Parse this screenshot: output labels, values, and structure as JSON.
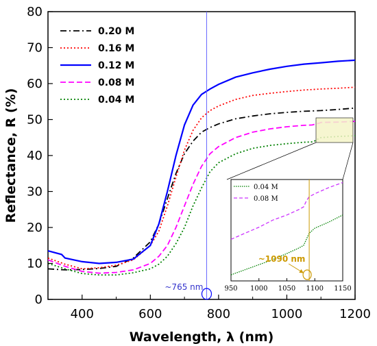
{
  "chart_data": {
    "type": "line",
    "xlabel": "Wavelength, λ (nm)",
    "ylabel": "Reflectance, R (%)",
    "xlim": [
      300,
      1200
    ],
    "ylim": [
      0,
      80
    ],
    "xticks": [
      "400",
      "600",
      "800",
      "1000",
      "1200"
    ],
    "yticks": [
      "0",
      "10",
      "20",
      "30",
      "40",
      "50",
      "60",
      "70",
      "80"
    ],
    "legend_position": "top-left",
    "grid": false,
    "series": [
      {
        "name": "0.20 M",
        "color": "#000000",
        "dash": "dashdot",
        "x": [
          300,
          350,
          400,
          450,
          500,
          550,
          600,
          625,
          650,
          675,
          700,
          725,
          750,
          775,
          800,
          850,
          900,
          950,
          1000,
          1050,
          1100,
          1150,
          1200
        ],
        "y": [
          8.5,
          8.2,
          8.3,
          8.6,
          9.2,
          11.5,
          16,
          21,
          28,
          35,
          40.5,
          44,
          46.5,
          47.8,
          48.8,
          50.2,
          51,
          51.6,
          52,
          52.3,
          52.5,
          52.8,
          53.2
        ]
      },
      {
        "name": "0.16 M",
        "color": "#ff0000",
        "dash": "dot",
        "x": [
          300,
          350,
          400,
          450,
          500,
          550,
          600,
          625,
          650,
          675,
          700,
          725,
          750,
          775,
          800,
          850,
          900,
          950,
          1000,
          1050,
          1100,
          1150,
          1200
        ],
        "y": [
          11.5,
          9.8,
          8.5,
          8.8,
          9.5,
          11,
          15,
          19,
          26,
          34,
          41.5,
          47,
          50.5,
          52.5,
          53.8,
          55.6,
          56.7,
          57.3,
          57.8,
          58.2,
          58.5,
          58.7,
          59
        ]
      },
      {
        "name": "0.12 M",
        "color": "#0000ff",
        "dash": "solid",
        "x": [
          300,
          340,
          350,
          400,
          450,
          500,
          550,
          600,
          625,
          650,
          675,
          700,
          725,
          750,
          775,
          800,
          850,
          900,
          950,
          1000,
          1050,
          1100,
          1150,
          1200
        ],
        "y": [
          13.5,
          12.5,
          11.5,
          10.5,
          10,
          10.3,
          11.2,
          15,
          21,
          30,
          40,
          48.5,
          54,
          57,
          58.5,
          59.8,
          61.8,
          63,
          64,
          64.8,
          65.4,
          65.8,
          66.2,
          66.5
        ]
      },
      {
        "name": "0.08 M",
        "color": "#ff00ff",
        "dash": "dash",
        "x": [
          300,
          350,
          400,
          450,
          500,
          550,
          600,
          625,
          650,
          675,
          700,
          725,
          750,
          775,
          800,
          850,
          900,
          950,
          1000,
          1050,
          1075,
          1085,
          1095,
          1100,
          1150,
          1200
        ],
        "y": [
          11,
          9.2,
          7.8,
          7.3,
          7.5,
          8.2,
          10,
          12,
          15,
          20,
          26,
          32,
          37,
          40.5,
          42.5,
          45,
          46.5,
          47.4,
          48,
          48.4,
          48.5,
          48.8,
          49,
          49.2,
          49.3,
          49.5
        ]
      },
      {
        "name": "0.04 M",
        "color": "#008000",
        "dash": "dot",
        "x": [
          300,
          350,
          400,
          450,
          500,
          550,
          600,
          625,
          650,
          675,
          700,
          725,
          750,
          775,
          800,
          850,
          900,
          950,
          1000,
          1050,
          1075,
          1085,
          1095,
          1100,
          1150,
          1200
        ],
        "y": [
          10,
          8.5,
          7.2,
          6.8,
          6.8,
          7.4,
          8.5,
          9.8,
          12,
          15.5,
          20,
          26,
          31,
          35.5,
          38,
          40.5,
          42,
          42.8,
          43.3,
          43.7,
          43.8,
          44.2,
          44.8,
          45,
          45.3,
          45.5
        ]
      }
    ],
    "annotations": {
      "vline_x": 765,
      "vline_label": "~765 nm"
    },
    "inset": {
      "xlim": [
        950,
        1150
      ],
      "xticks": [
        "950",
        "1000",
        "1050",
        "1100",
        "1150"
      ],
      "vline_x": 1090,
      "vline_label": "~1090 nm",
      "series": [
        {
          "name": "0.04 M",
          "color": "#008000",
          "dash": "dot",
          "x": [
            950,
            975,
            1000,
            1025,
            1050,
            1070,
            1080,
            1085,
            1090,
            1100,
            1125,
            1150
          ],
          "y": [
            0.06,
            0.11,
            0.16,
            0.21,
            0.27,
            0.32,
            0.35,
            0.41,
            0.47,
            0.52,
            0.58,
            0.65
          ]
        },
        {
          "name": "0.08 M",
          "color": "#cc33ff",
          "dash": "dash",
          "x": [
            950,
            975,
            1000,
            1025,
            1050,
            1070,
            1080,
            1085,
            1090,
            1100,
            1125,
            1150
          ],
          "y": [
            0.41,
            0.47,
            0.53,
            0.6,
            0.65,
            0.7,
            0.73,
            0.79,
            0.83,
            0.86,
            0.92,
            0.97
          ]
        }
      ]
    }
  }
}
